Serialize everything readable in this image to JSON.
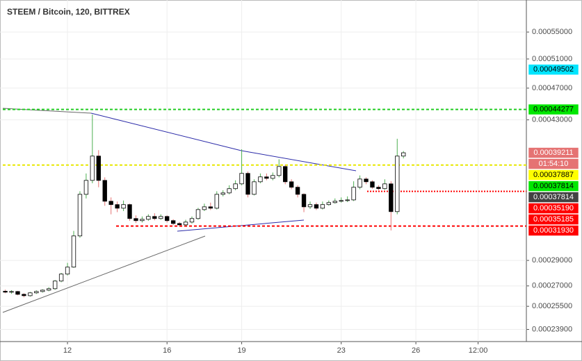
{
  "header": {
    "title": "STEEM / Bitcoin, 120, BITTREX"
  },
  "chart_data": {
    "type": "candlestick",
    "log_scale": true,
    "grid": true,
    "up_color": "#ffffff",
    "down_color": "#000000",
    "up_wick_color": "#4caf50",
    "down_wick_color": "#e57373",
    "x": [
      9.5,
      9.75,
      10,
      10.25,
      10.5,
      10.75,
      11,
      11.25,
      11.5,
      11.75,
      12,
      12.25,
      12.5,
      12.75,
      13,
      13.25,
      13.5,
      13.75,
      14,
      14.25,
      14.5,
      14.75,
      15,
      15.25,
      15.5,
      15.75,
      16,
      16.25,
      16.5,
      16.75,
      17,
      17.25,
      17.5,
      17.75,
      18,
      18.25,
      18.5,
      18.75,
      19,
      19.25,
      19.5,
      19.75,
      20,
      20.25,
      20.5,
      20.75,
      21,
      21.25,
      21.5,
      21.75,
      22,
      22.25,
      22.5,
      22.75,
      23,
      23.25,
      23.5,
      23.75,
      24,
      24.25,
      24.5,
      24.75,
      25,
      25.25,
      25.5
    ],
    "open": [
      0.000266,
      0.0002653,
      0.0002658,
      0.0002637,
      0.0002627,
      0.0002648,
      0.0002658,
      0.0002668,
      0.0002679,
      0.0002737,
      0.0002791,
      0.0002846,
      0.0003106,
      0.000349,
      0.0003629,
      0.0003885,
      0.0003629,
      0.0003423,
      0.0003391,
      0.0003357,
      0.0003391,
      0.0003261,
      0.0003242,
      0.0003254,
      0.000328,
      0.0003261,
      0.000328,
      0.0003242,
      0.0003216,
      0.0003204,
      0.0003229,
      0.0003261,
      0.0003344,
      0.000337,
      0.0003357,
      0.000349,
      0.0003504,
      0.0003546,
      0.0003594,
      0.0003701,
      0.000349,
      0.0003615,
      0.0003665,
      0.000365,
      0.0003679,
      0.0003773,
      0.0003615,
      0.000356,
      0.000349,
      0.000337,
      0.0003391,
      0.0003357,
      0.0003391,
      0.000341,
      0.0003423,
      0.000343,
      0.0003436,
      0.000356,
      0.0003643,
      0.0003615,
      0.000356,
      0.0003546,
      0.0003594,
      0.0003325,
      0.0003885
    ],
    "high": [
      0.0002672,
      0.0002668,
      0.0002662,
      0.0002645,
      0.0002655,
      0.0002666,
      0.0002675,
      0.000269,
      0.0002745,
      0.00028,
      0.000288,
      0.000315,
      0.000352,
      0.00037,
      0.0004365,
      0.000395,
      0.000366,
      0.000346,
      0.000342,
      0.000343,
      0.00034,
      0.000329,
      0.000328,
      0.00033,
      0.000331,
      0.00033,
      0.000329,
      0.0003255,
      0.000323,
      0.000325,
      0.000328,
      0.000336,
      0.00034,
      0.000341,
      0.000352,
      0.000353,
      0.000358,
      0.000363,
      0.000396,
      0.000372,
      0.000364,
      0.00037,
      0.00037,
      0.000371,
      0.000385,
      0.000379,
      0.000364,
      0.000358,
      0.00035,
      0.000342,
      0.000341,
      0.000342,
      0.000343,
      0.000345,
      0.000346,
      0.000347,
      0.000362,
      0.000368,
      0.000366,
      0.000363,
      0.000358,
      0.000364,
      0.000362,
      0.0004078,
      0.000394
    ],
    "low": [
      0.0002645,
      0.0002641,
      0.000263,
      0.0002615,
      0.000262,
      0.000264,
      0.000265,
      0.000266,
      0.000267,
      0.0002728,
      0.000278,
      0.000284,
      0.000309,
      0.000345,
      0.00036,
      0.000356,
      0.000338,
      0.00033,
      0.000332,
      0.000333,
      0.000324,
      0.000322,
      0.0003225,
      0.000324,
      0.0003245,
      0.000325,
      0.0003225,
      0.00032,
      0.0003195,
      0.0003195,
      0.0003215,
      0.000325,
      0.000333,
      0.000334,
      0.0003345,
      0.000347,
      0.000349,
      0.000353,
      0.000358,
      0.000346,
      0.000348,
      0.00036,
      0.000363,
      0.000363,
      0.000366,
      0.000359,
      0.000354,
      0.000346,
      0.000332,
      0.000335,
      0.000334,
      0.0003345,
      0.000338,
      0.00034,
      0.000341,
      0.0003415,
      0.0003425,
      0.000354,
      0.000359,
      0.0003545,
      0.000353,
      0.0003535,
      0.0003154,
      0.00033,
      0.000386
    ],
    "close": [
      0.0002653,
      0.0002658,
      0.0002637,
      0.0002627,
      0.0002648,
      0.0002658,
      0.0002668,
      0.0002679,
      0.0002737,
      0.0002791,
      0.0002846,
      0.0003106,
      0.000349,
      0.0003629,
      0.0003885,
      0.0003629,
      0.0003423,
      0.0003391,
      0.0003357,
      0.0003391,
      0.0003261,
      0.0003242,
      0.0003254,
      0.000328,
      0.0003261,
      0.000328,
      0.0003242,
      0.0003216,
      0.0003204,
      0.0003229,
      0.0003261,
      0.0003344,
      0.000337,
      0.0003357,
      0.000349,
      0.0003504,
      0.0003546,
      0.0003594,
      0.0003701,
      0.000349,
      0.0003615,
      0.0003665,
      0.000365,
      0.0003679,
      0.0003773,
      0.0003615,
      0.000356,
      0.000349,
      0.000337,
      0.0003391,
      0.0003357,
      0.0003391,
      0.000341,
      0.0003423,
      0.000343,
      0.0003436,
      0.000356,
      0.0003643,
      0.0003615,
      0.000356,
      0.0003546,
      0.0003594,
      0.0003325,
      0.0003885,
      0.0003921
    ],
    "xlim": [
      9.4,
      30.44
    ],
    "xticks": [
      12,
      16,
      19,
      23,
      26,
      {
        "value": 28.5,
        "label": "12:00"
      }
    ],
    "ylim": [
      0.000231,
      0.000597
    ],
    "yticks": [
      {
        "value": 0.00055,
        "label": "0.00055000"
      },
      {
        "value": 0.00051,
        "label": "0.00051000"
      },
      {
        "value": 0.00047,
        "label": "0.00047000"
      },
      {
        "value": 0.00043,
        "label": "0.00043000"
      },
      {
        "value": 0.00029,
        "label": "0.00029000"
      },
      {
        "value": 0.00027,
        "label": "0.00027000"
      },
      {
        "value": 0.000255,
        "label": "0.00025500"
      },
      {
        "value": 0.000239,
        "label": "0.00023900"
      }
    ],
    "price_tags": [
      {
        "value": 0.00049502,
        "label": "0.00049502",
        "color": "#00e5ff",
        "text_color": "#000000"
      },
      {
        "value": 0.00044277,
        "label": "0.00044277",
        "color": "#00e600",
        "text_color": "#000000"
      },
      {
        "value": 0.00039211,
        "label": "0.00039211",
        "color": "#e57373",
        "text_color": "#ffffff"
      },
      {
        "label": "01:54:10",
        "color": "#e57373",
        "text_color": "#ffffff"
      },
      {
        "value": 0.00037887,
        "label": "0.00037887",
        "color": "#ffff00",
        "text_color": "#000000"
      },
      {
        "value": 0.00037814,
        "label": "0.00037814",
        "color": "#00e600",
        "text_color": "#000000"
      },
      {
        "value": 0.00037814,
        "label": "0.00037814",
        "color": "#424242",
        "text_color": "#ffffff"
      },
      {
        "value": 0.0003519,
        "label": "0.00035190",
        "color": "#ff0000",
        "text_color": "#ffffff"
      },
      {
        "value": 0.00035185,
        "label": "0.00035185",
        "color": "#ff0000",
        "text_color": "#ffffff"
      },
      {
        "value": 0.0003193,
        "label": "0.00031930",
        "color": "#ff0000",
        "text_color": "#ffffff"
      }
    ]
  }
}
